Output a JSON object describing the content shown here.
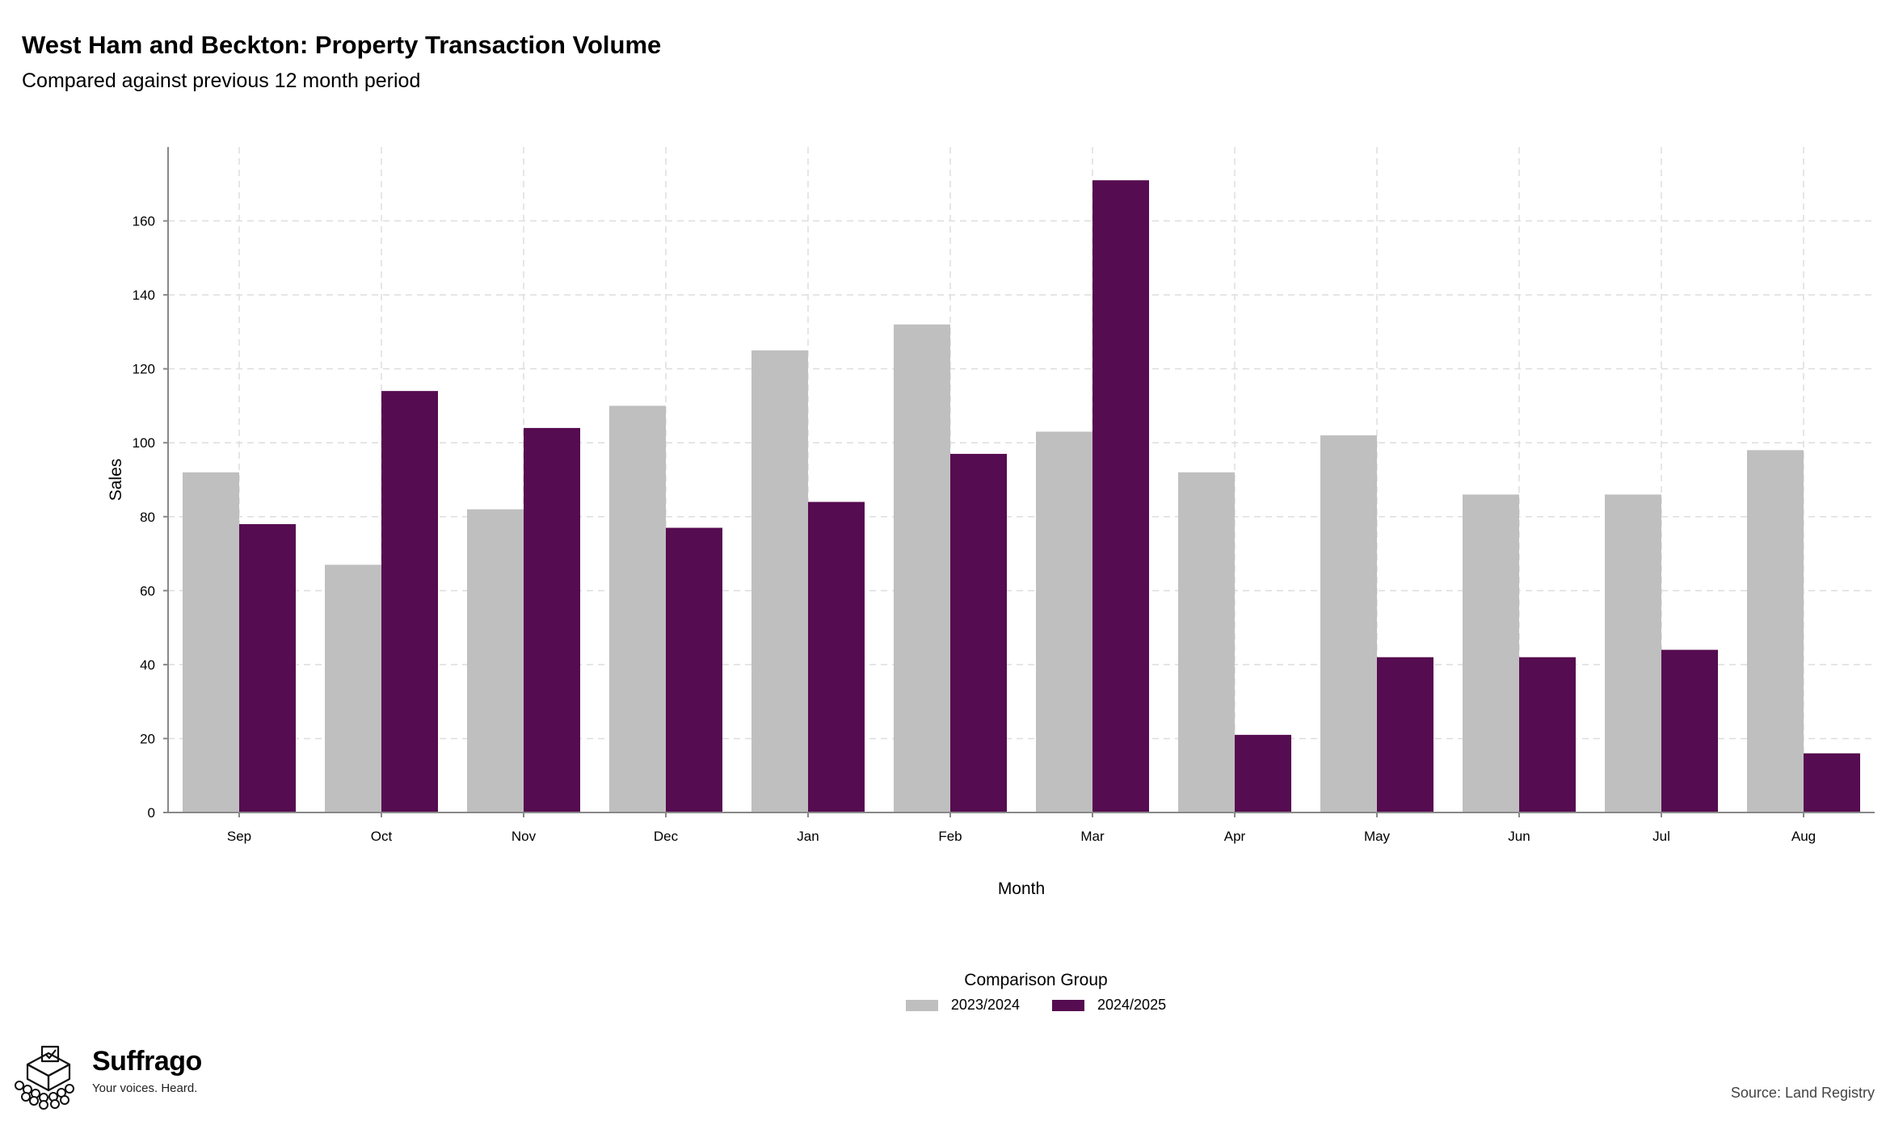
{
  "title": "West Ham and Beckton: Property Transaction Volume",
  "subtitle": "Compared against previous 12 month period",
  "source": "Source: Land Registry",
  "brand": {
    "name": "Suffrago",
    "tagline": "Your voices. Heard."
  },
  "chart_data": {
    "type": "bar",
    "xlabel": "Month",
    "ylabel": "Sales",
    "ylim": [
      0,
      180
    ],
    "yticks": [
      0,
      20,
      40,
      60,
      80,
      100,
      120,
      140,
      160
    ],
    "grid": true,
    "legend_title": "Comparison Group",
    "legend_position": "bottom",
    "categories": [
      "Sep",
      "Oct",
      "Nov",
      "Dec",
      "Jan",
      "Feb",
      "Mar",
      "Apr",
      "May",
      "Jun",
      "Jul",
      "Aug"
    ],
    "series": [
      {
        "name": "2023/2024",
        "color": "#bfbfbf",
        "values": [
          92,
          67,
          82,
          110,
          125,
          132,
          103,
          92,
          102,
          86,
          86,
          98
        ]
      },
      {
        "name": "2024/2025",
        "color": "#560c50",
        "values": [
          78,
          114,
          104,
          77,
          84,
          97,
          171,
          21,
          42,
          42,
          44,
          16
        ]
      }
    ]
  }
}
